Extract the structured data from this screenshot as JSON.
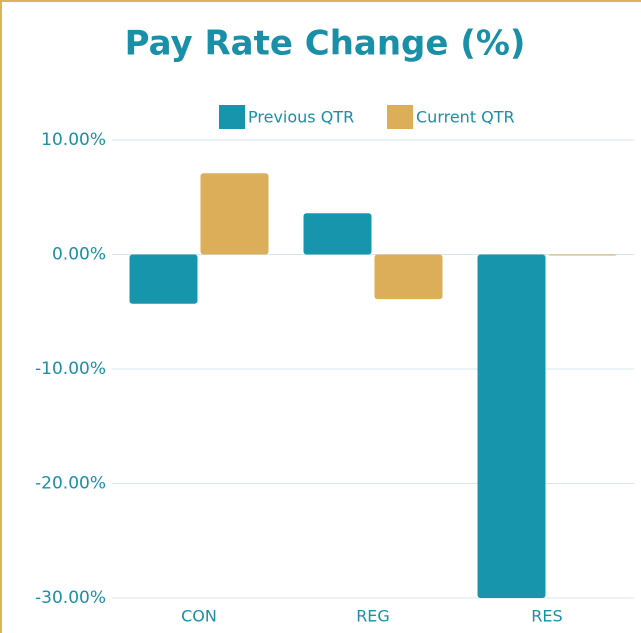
{
  "chart_data": {
    "type": "bar",
    "title": "Pay Rate Change (%)",
    "categories": [
      "CON",
      "REG",
      "RES"
    ],
    "series": [
      {
        "name": "Previous QTR",
        "color": "#1795ad",
        "values": [
          -4.3,
          3.6,
          -30.0
        ]
      },
      {
        "name": "Current QTR",
        "color": "#dcae5a",
        "values": [
          7.1,
          -3.9,
          0
        ]
      }
    ],
    "ylim": [
      -30,
      10
    ],
    "yticks": [
      {
        "value": 10,
        "label": "10.00%"
      },
      {
        "value": 0,
        "label": "0.00%"
      },
      {
        "value": -10,
        "label": "-10.00%"
      },
      {
        "value": -20,
        "label": "-20.00%"
      },
      {
        "value": -30,
        "label": "-30.00%"
      }
    ],
    "grid": true
  }
}
